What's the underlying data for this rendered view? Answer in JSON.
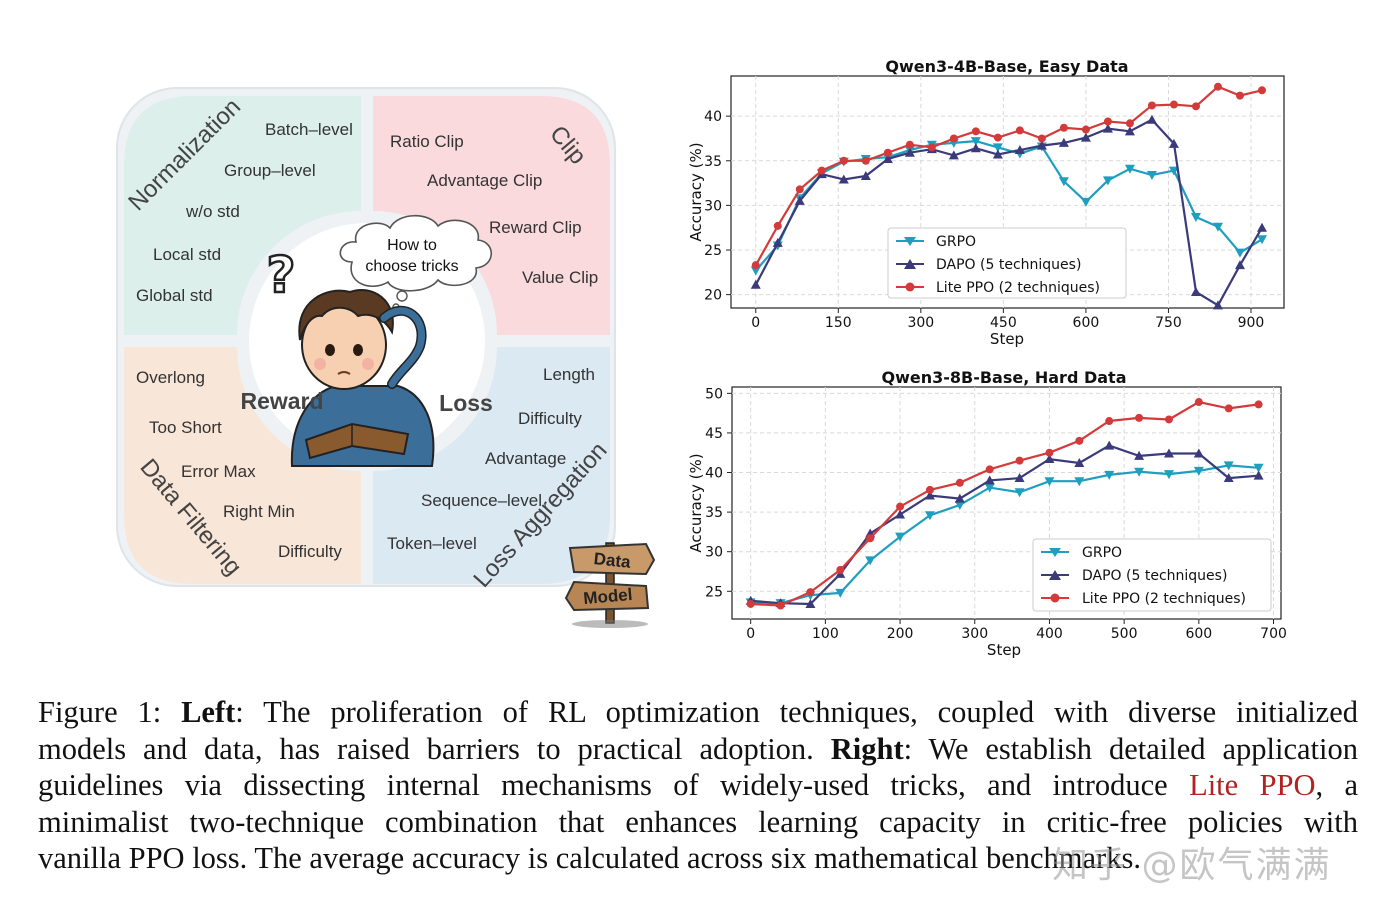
{
  "diagram": {
    "quadrants": {
      "normalization": {
        "title": "Normalization",
        "items": [
          "Batch–level",
          "Group–level",
          "w/o std",
          "Local std",
          "Global std"
        ]
      },
      "clip": {
        "title": "Clip",
        "items": [
          "Ratio Clip",
          "Advantage Clip",
          "Reward Clip",
          "Value Clip"
        ]
      },
      "data_filtering": {
        "title": "Data Filtering",
        "items": [
          "Overlong",
          "Too Short",
          "Error Max",
          "Right Min",
          "Difficulty"
        ]
      },
      "loss_aggregation": {
        "title": "Loss Aggregation",
        "items": [
          "Length",
          "Difficulty",
          "Advantage",
          "Sequence–level",
          "Token–level"
        ]
      }
    },
    "thought_bubble": [
      "How to",
      "choose tricks"
    ],
    "question_mark": "?",
    "reward_label": "Reward",
    "loss_label": "Loss",
    "signpost": {
      "top": "Data",
      "bottom": "Model"
    },
    "colors": {
      "normalization": "#dcefea",
      "clip": "#fadadd",
      "data_filtering": "#f8e6d8",
      "loss_aggregation": "#dbe9f3",
      "outer": "#eef2f5"
    }
  },
  "chart_data": [
    {
      "type": "line",
      "title": "Qwen3-4B-Base, Easy Data",
      "xlabel": "Step",
      "ylabel": "Accuracy (%)",
      "xlim": [
        -45,
        960
      ],
      "ylim": [
        18.5,
        44.5
      ],
      "xticks": [
        0,
        150,
        300,
        450,
        600,
        750,
        900
      ],
      "yticks": [
        20,
        25,
        30,
        35,
        40
      ],
      "grid": true,
      "legend_position": "center-right",
      "series": [
        {
          "name": "GRPO",
          "color": "#1f9fbf",
          "marker": "down-triangle",
          "x": [
            0,
            40,
            80,
            120,
            160,
            200,
            240,
            280,
            320,
            360,
            400,
            440,
            480,
            520,
            560,
            600,
            640,
            680,
            720,
            760,
            800,
            840,
            880,
            920
          ],
          "y": [
            22.7,
            25.5,
            30.8,
            33.6,
            34.9,
            35.2,
            35.4,
            36.2,
            36.8,
            37.0,
            37.2,
            36.5,
            35.8,
            36.6,
            32.7,
            30.4,
            32.8,
            34.1,
            33.4,
            33.9,
            28.7,
            27.6,
            24.7,
            26.2
          ]
        },
        {
          "name": "DAPO (5 techniques)",
          "color": "#3b3a7a",
          "marker": "up-triangle",
          "x": [
            0,
            40,
            80,
            120,
            160,
            200,
            240,
            280,
            320,
            360,
            400,
            440,
            480,
            520,
            560,
            600,
            640,
            680,
            720,
            760,
            800,
            840,
            880,
            920
          ],
          "y": [
            21.1,
            25.8,
            30.5,
            33.5,
            32.9,
            33.3,
            35.2,
            35.9,
            36.3,
            35.6,
            36.4,
            35.7,
            36.2,
            36.7,
            37.0,
            37.6,
            38.6,
            38.3,
            39.6,
            36.9,
            20.3,
            18.8,
            23.3,
            27.5
          ]
        },
        {
          "name": "Lite PPO (2 techniques)",
          "color": "#d43a3a",
          "marker": "circle",
          "x": [
            0,
            40,
            80,
            120,
            160,
            200,
            240,
            280,
            320,
            360,
            400,
            440,
            480,
            520,
            560,
            600,
            640,
            680,
            720,
            760,
            800,
            840,
            880,
            920
          ],
          "y": [
            23.3,
            27.7,
            31.8,
            33.9,
            35.0,
            35.0,
            35.9,
            36.8,
            36.5,
            37.5,
            38.3,
            37.6,
            38.4,
            37.5,
            38.7,
            38.5,
            39.4,
            39.2,
            41.2,
            41.3,
            41.1,
            43.3,
            42.3,
            42.9
          ]
        }
      ]
    },
    {
      "type": "line",
      "title": "Qwen3-8B-Base, Hard Data",
      "xlabel": "Step",
      "ylabel": "Accuracy (%)",
      "xlim": [
        -25,
        710
      ],
      "ylim": [
        21.5,
        50.8
      ],
      "xticks": [
        0,
        100,
        200,
        300,
        400,
        500,
        600,
        700
      ],
      "yticks": [
        25,
        30,
        35,
        40,
        45,
        50
      ],
      "grid": true,
      "legend_position": "lower-right",
      "series": [
        {
          "name": "GRPO",
          "color": "#1f9fbf",
          "marker": "down-triangle",
          "x": [
            0,
            40,
            80,
            120,
            160,
            200,
            240,
            280,
            320,
            360,
            400,
            440,
            480,
            520,
            560,
            600,
            640,
            680
          ],
          "y": [
            23.6,
            23.5,
            24.5,
            24.8,
            28.9,
            31.9,
            34.6,
            35.9,
            38.1,
            37.5,
            38.9,
            38.9,
            39.7,
            40.1,
            39.8,
            40.2,
            40.9,
            40.6
          ]
        },
        {
          "name": "DAPO (5 techniques)",
          "color": "#3b3a7a",
          "marker": "up-triangle",
          "x": [
            0,
            40,
            80,
            120,
            160,
            200,
            240,
            280,
            320,
            360,
            400,
            440,
            480,
            520,
            560,
            600,
            640,
            680
          ],
          "y": [
            23.8,
            23.5,
            23.4,
            27.2,
            32.3,
            34.7,
            37.1,
            36.7,
            39.0,
            39.3,
            41.7,
            41.2,
            43.4,
            42.1,
            42.4,
            42.4,
            39.3,
            39.6
          ]
        },
        {
          "name": "Lite PPO (2 techniques)",
          "color": "#d43a3a",
          "marker": "circle",
          "x": [
            0,
            40,
            80,
            120,
            160,
            200,
            240,
            280,
            320,
            360,
            400,
            440,
            480,
            520,
            560,
            600,
            640,
            680
          ],
          "y": [
            23.4,
            23.2,
            24.9,
            27.7,
            31.7,
            35.7,
            37.8,
            38.7,
            40.4,
            41.5,
            42.5,
            44.0,
            46.5,
            46.9,
            46.7,
            48.9,
            48.1,
            48.6
          ]
        }
      ]
    }
  ],
  "caption": {
    "line1": {
      "a": "Figure 1: ",
      "b": "Left",
      "c": ": The proliferation of RL optimization techniques, coupled with diverse initialized"
    },
    "line2": {
      "a": "models and data, has raised barriers to practical adoption. ",
      "b": "Right",
      "c": ": We establish detailed application"
    },
    "line3": {
      "a": "guidelines via dissecting internal mechanisms of widely-used tricks, and introduce ",
      "hl": "Lite PPO",
      "c": ", a"
    },
    "line4": "minimalist two-technique combination that enhances learning capacity in critic-free policies with",
    "line5": "vanilla PPO loss. The average accuracy is calculated across six mathematical benchmarks."
  },
  "watermark": "知乎 @欧气满满"
}
